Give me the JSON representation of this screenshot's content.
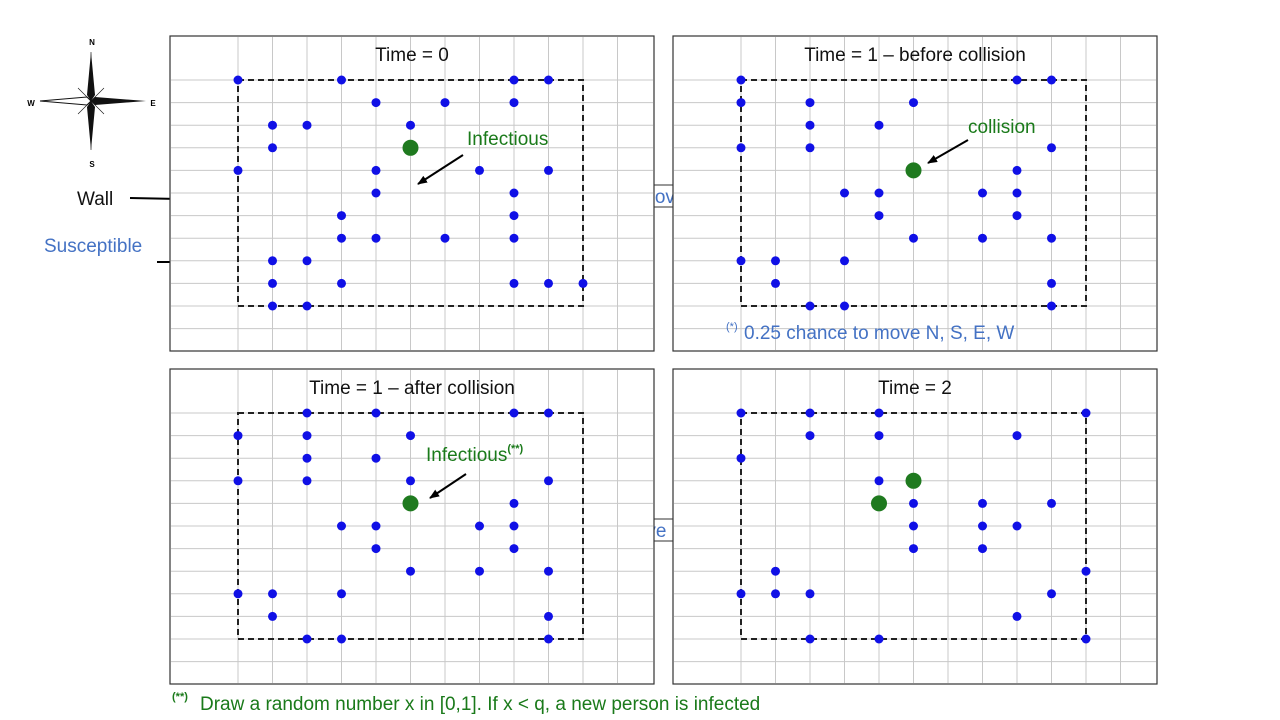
{
  "compass": {
    "n": "N",
    "s": "S",
    "e": "E",
    "w": "W"
  },
  "labels": {
    "wall": "Wall",
    "susceptible": "Susceptible",
    "move1_star": "(*)",
    "move1_text": "Move",
    "move2_text": "Move",
    "move2_star": "(*)",
    "move_note_star": "(*)",
    "move_note": "0.25 chance to move N, S, E, W",
    "footnote_star": "(**)",
    "footnote": "Draw a random number x in [0,1]. If x < q, a new person is infected"
  },
  "colors": {
    "susceptible": "#1010e6",
    "infectious": "#1f7a1f",
    "text_blue": "#4472c4",
    "text_green": "#1a7a1a",
    "grid": "#c8c8c8",
    "wall": "#222222"
  },
  "panels": [
    {
      "title": "Time = 0",
      "annotation": {
        "text": "Infectious",
        "sup": ""
      },
      "infected": [
        [
          5,
          3
        ]
      ],
      "susceptible": [
        [
          0,
          0
        ],
        [
          3,
          0
        ],
        [
          8,
          0
        ],
        [
          9,
          0
        ],
        [
          4,
          1
        ],
        [
          6,
          1
        ],
        [
          8,
          1
        ],
        [
          1,
          2
        ],
        [
          2,
          2
        ],
        [
          5,
          2
        ],
        [
          1,
          3
        ],
        [
          0,
          4
        ],
        [
          4,
          4
        ],
        [
          7,
          4
        ],
        [
          9,
          4
        ],
        [
          4,
          5
        ],
        [
          8,
          5
        ],
        [
          3,
          6
        ],
        [
          8,
          6
        ],
        [
          3,
          7
        ],
        [
          4,
          7
        ],
        [
          6,
          7
        ],
        [
          8,
          7
        ],
        [
          1,
          8
        ],
        [
          2,
          8
        ],
        [
          1,
          9
        ],
        [
          3,
          9
        ],
        [
          8,
          9
        ],
        [
          9,
          9
        ],
        [
          10,
          9
        ],
        [
          1,
          10
        ],
        [
          2,
          10
        ]
      ]
    },
    {
      "title": "Time = 1 – before collision",
      "annotation": {
        "text": "collision",
        "sup": ""
      },
      "infected": [
        [
          5,
          4
        ]
      ],
      "susceptible": [
        [
          0,
          0
        ],
        [
          8,
          0
        ],
        [
          9,
          0
        ],
        [
          0,
          1
        ],
        [
          2,
          1
        ],
        [
          5,
          1
        ],
        [
          2,
          2
        ],
        [
          4,
          2
        ],
        [
          0,
          3
        ],
        [
          2,
          3
        ],
        [
          9,
          3
        ],
        [
          8,
          4
        ],
        [
          3,
          5
        ],
        [
          4,
          5
        ],
        [
          7,
          5
        ],
        [
          8,
          5
        ],
        [
          4,
          6
        ],
        [
          8,
          6
        ],
        [
          5,
          7
        ],
        [
          7,
          7
        ],
        [
          9,
          7
        ],
        [
          0,
          8
        ],
        [
          1,
          8
        ],
        [
          3,
          8
        ],
        [
          1,
          9
        ],
        [
          9,
          9
        ],
        [
          2,
          10
        ],
        [
          3,
          10
        ],
        [
          9,
          10
        ]
      ]
    },
    {
      "title": "Time = 1 – after collision",
      "annotation": {
        "text": "Infectious",
        "sup": "(**)"
      },
      "infected": [
        [
          5,
          4
        ]
      ],
      "susceptible": [
        [
          2,
          0
        ],
        [
          4,
          0
        ],
        [
          8,
          0
        ],
        [
          9,
          0
        ],
        [
          0,
          1
        ],
        [
          2,
          1
        ],
        [
          5,
          1
        ],
        [
          2,
          2
        ],
        [
          4,
          2
        ],
        [
          0,
          3
        ],
        [
          2,
          3
        ],
        [
          5,
          3
        ],
        [
          9,
          3
        ],
        [
          8,
          4
        ],
        [
          3,
          5
        ],
        [
          4,
          5
        ],
        [
          7,
          5
        ],
        [
          8,
          5
        ],
        [
          4,
          6
        ],
        [
          8,
          6
        ],
        [
          5,
          7
        ],
        [
          7,
          7
        ],
        [
          9,
          7
        ],
        [
          0,
          8
        ],
        [
          1,
          8
        ],
        [
          3,
          8
        ],
        [
          1,
          9
        ],
        [
          9,
          9
        ],
        [
          2,
          10
        ],
        [
          3,
          10
        ],
        [
          9,
          10
        ]
      ]
    },
    {
      "title": "Time = 2",
      "annotation": {
        "text": "",
        "sup": ""
      },
      "infected": [
        [
          5,
          3
        ],
        [
          4,
          4
        ]
      ],
      "susceptible": [
        [
          0,
          0
        ],
        [
          2,
          0
        ],
        [
          4,
          0
        ],
        [
          10,
          0
        ],
        [
          2,
          1
        ],
        [
          4,
          1
        ],
        [
          8,
          1
        ],
        [
          0,
          2
        ],
        [
          4,
          3
        ],
        [
          4,
          4
        ],
        [
          5,
          4
        ],
        [
          7,
          4
        ],
        [
          9,
          4
        ],
        [
          5,
          5
        ],
        [
          7,
          5
        ],
        [
          8,
          5
        ],
        [
          5,
          6
        ],
        [
          7,
          6
        ],
        [
          1,
          7
        ],
        [
          10,
          7
        ],
        [
          0,
          8
        ],
        [
          1,
          8
        ],
        [
          2,
          8
        ],
        [
          9,
          8
        ],
        [
          8,
          9
        ],
        [
          2,
          10
        ],
        [
          4,
          10
        ],
        [
          10,
          10
        ]
      ]
    }
  ]
}
